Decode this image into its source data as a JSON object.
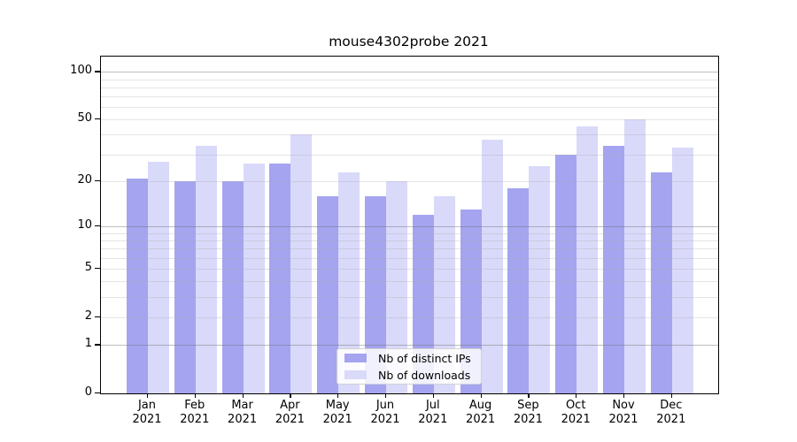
{
  "window": {
    "background": "#ffffff"
  },
  "chart_data": {
    "type": "bar",
    "title": "mouse4302probe 2021",
    "categories": [
      "Jan",
      "Feb",
      "Mar",
      "Apr",
      "May",
      "Jun",
      "Jul",
      "Aug",
      "Sep",
      "Oct",
      "Nov",
      "Dec"
    ],
    "category_year": "2021",
    "series": [
      {
        "name": "Nb of distinct IPs",
        "color": "#a4a4f0",
        "values": [
          21,
          20,
          20,
          26,
          16,
          16,
          12,
          13,
          18,
          30,
          34,
          23
        ]
      },
      {
        "name": "Nb of downloads",
        "color": "#d9d9fa",
        "values": [
          27,
          34,
          26,
          40,
          23,
          20,
          16,
          37,
          25,
          45,
          50,
          33
        ]
      }
    ],
    "xlabel": "",
    "ylabel": "",
    "yscale": "log1p",
    "ylim": [
      0,
      125
    ],
    "ytick_values": [
      100,
      50,
      20,
      10,
      5,
      2,
      1,
      0
    ],
    "ytick_labels": [
      "100",
      "50",
      "20",
      "10",
      "5",
      "2",
      "1",
      "0"
    ],
    "grid": "on",
    "grid_major_values": [
      1,
      10,
      100
    ],
    "grid_minor_values": [
      2,
      3,
      4,
      5,
      6,
      7,
      8,
      9,
      20,
      30,
      40,
      50,
      60,
      70,
      80,
      90
    ],
    "grid_major_color": "#c4c4c4",
    "grid_minor_color": "#ebebeb",
    "axis_color": "#000000",
    "legend": {
      "position": "lower center",
      "labels": [
        "Nb of distinct IPs",
        "Nb of downloads"
      ]
    }
  }
}
